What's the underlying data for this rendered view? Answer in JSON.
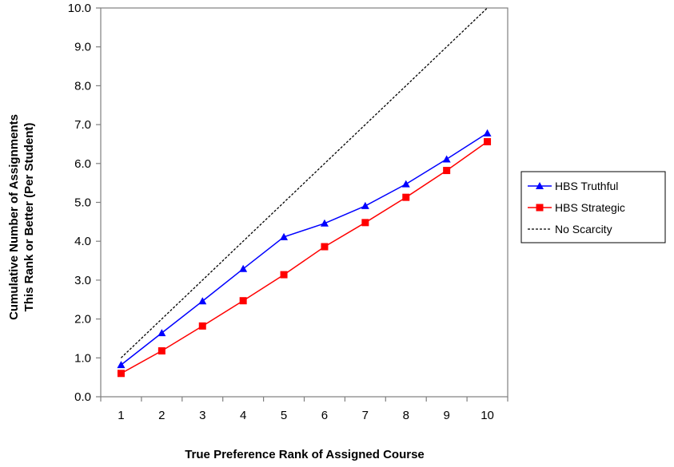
{
  "chart_data": {
    "type": "line",
    "title": "",
    "xlabel": "True Preference Rank of Assigned Course",
    "ylabel_lines": [
      "Cumulative Number of Assignments",
      "This Rank or Better (Per Student)"
    ],
    "x": [
      1,
      2,
      3,
      4,
      5,
      6,
      7,
      8,
      9,
      10
    ],
    "x_tick_labels": [
      "1",
      "2",
      "3",
      "4",
      "5",
      "6",
      "7",
      "8",
      "9",
      "10"
    ],
    "y_tick_labels": [
      "0.0",
      "1.0",
      "2.0",
      "3.0",
      "4.0",
      "5.0",
      "6.0",
      "7.0",
      "8.0",
      "9.0",
      "10.0"
    ],
    "xlim": [
      0.5,
      10.5
    ],
    "ylim": [
      0,
      10
    ],
    "grid": false,
    "legend_position": "right",
    "series": [
      {
        "name": "HBS Truthful",
        "color": "#0000ff",
        "marker": "triangle",
        "style": "solid",
        "values": [
          0.82,
          1.64,
          2.46,
          3.29,
          4.11,
          4.46,
          4.91,
          5.47,
          6.11,
          6.78
        ]
      },
      {
        "name": "HBS Strategic",
        "color": "#ff0000",
        "marker": "square",
        "style": "solid",
        "values": [
          0.6,
          1.18,
          1.82,
          2.47,
          3.14,
          3.86,
          4.48,
          5.13,
          5.82,
          6.56
        ]
      },
      {
        "name": "No Scarcity",
        "color": "#000000",
        "marker": "none",
        "style": "dotted",
        "values": [
          1,
          2,
          3,
          4,
          5,
          6,
          7,
          8,
          9,
          10
        ]
      }
    ]
  }
}
